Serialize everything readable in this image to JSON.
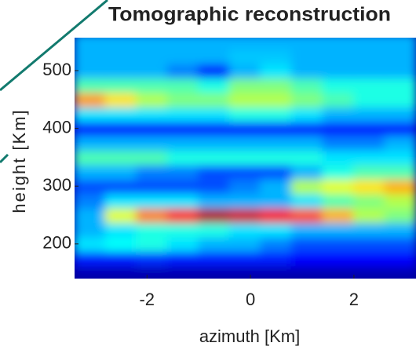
{
  "chart_data": {
    "type": "heatmap",
    "title": "Tomographic reconstruction",
    "x_label": "azimuth [Km]",
    "y_label": "height [Km]",
    "xlim": [
      -3.4,
      3.2
    ],
    "ylim": [
      140,
      557
    ],
    "xticks": [
      -2,
      0,
      2
    ],
    "yticks": [
      200,
      300,
      400,
      500
    ],
    "colormap": "jet",
    "x": [
      -3.1,
      -2.5,
      -1.9,
      -1.3,
      -0.7,
      -0.1,
      0.5,
      1.1,
      1.7,
      2.3,
      2.9
    ],
    "y": [
      150,
      175,
      200,
      225,
      250,
      275,
      300,
      325,
      350,
      375,
      400,
      425,
      450,
      475,
      500,
      525,
      550
    ],
    "z": [
      [
        0.05,
        0.05,
        0.05,
        0.05,
        0.05,
        0.05,
        0.05,
        0.05,
        0.05,
        0.05,
        0.05
      ],
      [
        0.15,
        0.15,
        0.17,
        0.15,
        0.15,
        0.15,
        0.15,
        0.13,
        0.13,
        0.13,
        0.13
      ],
      [
        0.35,
        0.38,
        0.4,
        0.35,
        0.3,
        0.3,
        0.25,
        0.2,
        0.2,
        0.2,
        0.2
      ],
      [
        0.3,
        0.35,
        0.4,
        0.4,
        0.4,
        0.35,
        0.35,
        0.3,
        0.3,
        0.3,
        0.3
      ],
      [
        0.3,
        0.6,
        0.75,
        0.85,
        0.95,
        0.92,
        0.88,
        0.8,
        0.7,
        0.55,
        0.5
      ],
      [
        0.25,
        0.35,
        0.35,
        0.35,
        0.3,
        0.3,
        0.3,
        0.35,
        0.45,
        0.5,
        0.55
      ],
      [
        0.2,
        0.2,
        0.2,
        0.2,
        0.2,
        0.25,
        0.3,
        0.55,
        0.6,
        0.65,
        0.7
      ],
      [
        0.3,
        0.3,
        0.25,
        0.25,
        0.2,
        0.2,
        0.2,
        0.3,
        0.4,
        0.45,
        0.45
      ],
      [
        0.45,
        0.45,
        0.45,
        0.4,
        0.4,
        0.4,
        0.4,
        0.4,
        0.35,
        0.35,
        0.35
      ],
      [
        0.3,
        0.3,
        0.3,
        0.3,
        0.3,
        0.3,
        0.3,
        0.3,
        0.25,
        0.25,
        0.3
      ],
      [
        0.15,
        0.15,
        0.15,
        0.15,
        0.15,
        0.15,
        0.15,
        0.15,
        0.15,
        0.15,
        0.15
      ],
      [
        0.35,
        0.35,
        0.35,
        0.35,
        0.35,
        0.4,
        0.4,
        0.35,
        0.3,
        0.3,
        0.3
      ],
      [
        0.72,
        0.65,
        0.55,
        0.5,
        0.5,
        0.55,
        0.55,
        0.5,
        0.45,
        0.4,
        0.4
      ],
      [
        0.45,
        0.45,
        0.45,
        0.45,
        0.4,
        0.5,
        0.5,
        0.45,
        0.4,
        0.4,
        0.4
      ],
      [
        0.3,
        0.3,
        0.3,
        0.25,
        0.15,
        0.3,
        0.35,
        0.3,
        0.3,
        0.3,
        0.3
      ],
      [
        0.3,
        0.3,
        0.3,
        0.3,
        0.3,
        0.32,
        0.32,
        0.3,
        0.3,
        0.3,
        0.3
      ],
      [
        0.3,
        0.3,
        0.3,
        0.3,
        0.3,
        0.3,
        0.3,
        0.3,
        0.3,
        0.3,
        0.3
      ]
    ]
  }
}
